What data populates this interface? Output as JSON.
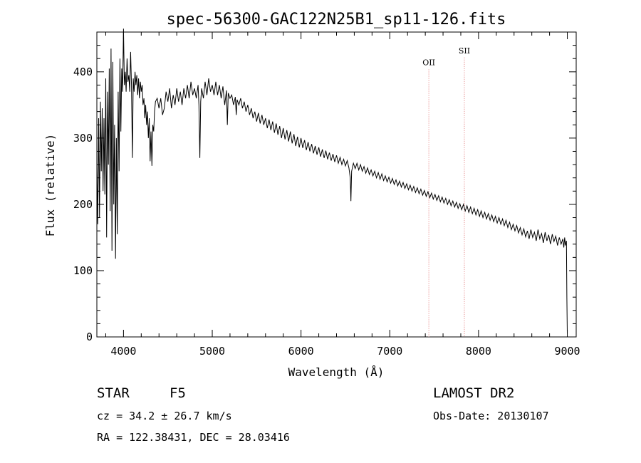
{
  "chart_data": {
    "type": "line",
    "title": "spec-56300-GAC122N25B1_sp11-126.fits",
    "xlabel": "Wavelength (Å)",
    "ylabel": "Flux (relative)",
    "xlim": [
      3700,
      9100
    ],
    "ylim": [
      0,
      460
    ],
    "x_ticks": [
      4000,
      5000,
      6000,
      7000,
      8000,
      9000
    ],
    "y_ticks": [
      0,
      100,
      200,
      300,
      400
    ],
    "grid": false,
    "series": [
      {
        "points": [
          [
            3700,
            260
          ],
          [
            3710,
            170
          ],
          [
            3720,
            330
          ],
          [
            3730,
            180
          ],
          [
            3740,
            355
          ],
          [
            3750,
            250
          ],
          [
            3760,
            345
          ],
          [
            3770,
            220
          ],
          [
            3780,
            330
          ],
          [
            3790,
            215
          ],
          [
            3800,
            390
          ],
          [
            3810,
            150
          ],
          [
            3820,
            370
          ],
          [
            3830,
            260
          ],
          [
            3840,
            405
          ],
          [
            3850,
            190
          ],
          [
            3860,
            435
          ],
          [
            3870,
            130
          ],
          [
            3880,
            415
          ],
          [
            3890,
            200
          ],
          [
            3900,
            320
          ],
          [
            3910,
            118
          ],
          [
            3920,
            300
          ],
          [
            3930,
            155
          ],
          [
            3940,
            370
          ],
          [
            3950,
            250
          ],
          [
            3960,
            420
          ],
          [
            3970,
            310
          ],
          [
            3980,
            405
          ],
          [
            3990,
            370
          ],
          [
            4000,
            465
          ],
          [
            4010,
            380
          ],
          [
            4020,
            400
          ],
          [
            4030,
            370
          ],
          [
            4040,
            420
          ],
          [
            4050,
            385
          ],
          [
            4060,
            395
          ],
          [
            4070,
            370
          ],
          [
            4080,
            430
          ],
          [
            4090,
            380
          ],
          [
            4100,
            270
          ],
          [
            4110,
            390
          ],
          [
            4120,
            370
          ],
          [
            4130,
            400
          ],
          [
            4140,
            380
          ],
          [
            4150,
            395
          ],
          [
            4160,
            365
          ],
          [
            4170,
            390
          ],
          [
            4180,
            360
          ],
          [
            4190,
            385
          ],
          [
            4200,
            370
          ],
          [
            4210,
            380
          ],
          [
            4220,
            350
          ],
          [
            4230,
            360
          ],
          [
            4240,
            330
          ],
          [
            4250,
            350
          ],
          [
            4260,
            320
          ],
          [
            4270,
            340
          ],
          [
            4280,
            300
          ],
          [
            4290,
            330
          ],
          [
            4300,
            265
          ],
          [
            4310,
            310
          ],
          [
            4320,
            258
          ],
          [
            4330,
            320
          ],
          [
            4340,
            310
          ],
          [
            4350,
            340
          ],
          [
            4360,
            355
          ],
          [
            4380,
            360
          ],
          [
            4400,
            345
          ],
          [
            4420,
            360
          ],
          [
            4440,
            335
          ],
          [
            4460,
            345
          ],
          [
            4480,
            370
          ],
          [
            4500,
            355
          ],
          [
            4520,
            375
          ],
          [
            4540,
            345
          ],
          [
            4560,
            365
          ],
          [
            4580,
            350
          ],
          [
            4600,
            375
          ],
          [
            4620,
            355
          ],
          [
            4640,
            370
          ],
          [
            4660,
            350
          ],
          [
            4680,
            375
          ],
          [
            4700,
            360
          ],
          [
            4720,
            380
          ],
          [
            4740,
            360
          ],
          [
            4760,
            385
          ],
          [
            4780,
            365
          ],
          [
            4800,
            375
          ],
          [
            4820,
            360
          ],
          [
            4840,
            380
          ],
          [
            4850,
            350
          ],
          [
            4860,
            270
          ],
          [
            4870,
            355
          ],
          [
            4880,
            375
          ],
          [
            4900,
            360
          ],
          [
            4920,
            385
          ],
          [
            4940,
            365
          ],
          [
            4960,
            390
          ],
          [
            4980,
            370
          ],
          [
            5000,
            380
          ],
          [
            5020,
            365
          ],
          [
            5040,
            385
          ],
          [
            5060,
            365
          ],
          [
            5080,
            380
          ],
          [
            5100,
            360
          ],
          [
            5120,
            378
          ],
          [
            5140,
            350
          ],
          [
            5160,
            372
          ],
          [
            5170,
            320
          ],
          [
            5180,
            368
          ],
          [
            5200,
            360
          ],
          [
            5220,
            365
          ],
          [
            5240,
            350
          ],
          [
            5260,
            362
          ],
          [
            5270,
            335
          ],
          [
            5280,
            358
          ],
          [
            5300,
            350
          ],
          [
            5320,
            360
          ],
          [
            5340,
            345
          ],
          [
            5360,
            355
          ],
          [
            5380,
            340
          ],
          [
            5400,
            350
          ],
          [
            5420,
            335
          ],
          [
            5440,
            345
          ],
          [
            5460,
            330
          ],
          [
            5480,
            340
          ],
          [
            5500,
            325
          ],
          [
            5520,
            338
          ],
          [
            5540,
            322
          ],
          [
            5560,
            335
          ],
          [
            5580,
            320
          ],
          [
            5600,
            330
          ],
          [
            5620,
            315
          ],
          [
            5640,
            328
          ],
          [
            5660,
            312
          ],
          [
            5680,
            325
          ],
          [
            5700,
            308
          ],
          [
            5720,
            322
          ],
          [
            5740,
            305
          ],
          [
            5760,
            318
          ],
          [
            5780,
            300
          ],
          [
            5800,
            315
          ],
          [
            5820,
            298
          ],
          [
            5840,
            312
          ],
          [
            5860,
            295
          ],
          [
            5880,
            310
          ],
          [
            5900,
            292
          ],
          [
            5920,
            306
          ],
          [
            5940,
            288
          ],
          [
            5960,
            302
          ],
          [
            5980,
            286
          ],
          [
            6000,
            300
          ],
          [
            6020,
            285
          ],
          [
            6040,
            297
          ],
          [
            6060,
            282
          ],
          [
            6080,
            294
          ],
          [
            6100,
            280
          ],
          [
            6120,
            291
          ],
          [
            6140,
            277
          ],
          [
            6160,
            288
          ],
          [
            6180,
            275
          ],
          [
            6200,
            286
          ],
          [
            6220,
            272
          ],
          [
            6240,
            283
          ],
          [
            6260,
            270
          ],
          [
            6280,
            281
          ],
          [
            6300,
            268
          ],
          [
            6320,
            278
          ],
          [
            6340,
            266
          ],
          [
            6360,
            276
          ],
          [
            6380,
            264
          ],
          [
            6400,
            274
          ],
          [
            6420,
            262
          ],
          [
            6440,
            271
          ],
          [
            6460,
            260
          ],
          [
            6480,
            268
          ],
          [
            6500,
            258
          ],
          [
            6520,
            266
          ],
          [
            6540,
            255
          ],
          [
            6555,
            240
          ],
          [
            6562,
            205
          ],
          [
            6570,
            250
          ],
          [
            6590,
            262
          ],
          [
            6610,
            254
          ],
          [
            6630,
            262
          ],
          [
            6650,
            252
          ],
          [
            6670,
            260
          ],
          [
            6690,
            250
          ],
          [
            6710,
            257
          ],
          [
            6730,
            247
          ],
          [
            6750,
            255
          ],
          [
            6770,
            245
          ],
          [
            6790,
            252
          ],
          [
            6810,
            243
          ],
          [
            6830,
            250
          ],
          [
            6850,
            240
          ],
          [
            6870,
            248
          ],
          [
            6890,
            238
          ],
          [
            6910,
            246
          ],
          [
            6930,
            236
          ],
          [
            6950,
            243
          ],
          [
            6970,
            234
          ],
          [
            6990,
            241
          ],
          [
            7010,
            232
          ],
          [
            7030,
            239
          ],
          [
            7050,
            230
          ],
          [
            7070,
            237
          ],
          [
            7090,
            228
          ],
          [
            7110,
            235
          ],
          [
            7130,
            226
          ],
          [
            7150,
            233
          ],
          [
            7170,
            224
          ],
          [
            7190,
            231
          ],
          [
            7210,
            222
          ],
          [
            7230,
            229
          ],
          [
            7250,
            220
          ],
          [
            7270,
            227
          ],
          [
            7290,
            218
          ],
          [
            7310,
            225
          ],
          [
            7330,
            216
          ],
          [
            7350,
            223
          ],
          [
            7370,
            214
          ],
          [
            7390,
            221
          ],
          [
            7410,
            212
          ],
          [
            7430,
            219
          ],
          [
            7450,
            210
          ],
          [
            7470,
            217
          ],
          [
            7490,
            208
          ],
          [
            7510,
            215
          ],
          [
            7530,
            206
          ],
          [
            7550,
            213
          ],
          [
            7570,
            204
          ],
          [
            7590,
            211
          ],
          [
            7610,
            202
          ],
          [
            7630,
            209
          ],
          [
            7650,
            200
          ],
          [
            7670,
            207
          ],
          [
            7690,
            198
          ],
          [
            7710,
            205
          ],
          [
            7730,
            196
          ],
          [
            7750,
            203
          ],
          [
            7770,
            194
          ],
          [
            7790,
            201
          ],
          [
            7810,
            192
          ],
          [
            7830,
            200
          ],
          [
            7850,
            190
          ],
          [
            7870,
            198
          ],
          [
            7890,
            188
          ],
          [
            7910,
            196
          ],
          [
            7930,
            186
          ],
          [
            7950,
            194
          ],
          [
            7970,
            184
          ],
          [
            7990,
            192
          ],
          [
            8010,
            182
          ],
          [
            8030,
            190
          ],
          [
            8050,
            180
          ],
          [
            8070,
            188
          ],
          [
            8090,
            178
          ],
          [
            8110,
            186
          ],
          [
            8130,
            176
          ],
          [
            8150,
            184
          ],
          [
            8170,
            174
          ],
          [
            8190,
            182
          ],
          [
            8210,
            172
          ],
          [
            8230,
            180
          ],
          [
            8250,
            170
          ],
          [
            8270,
            178
          ],
          [
            8290,
            168
          ],
          [
            8310,
            176
          ],
          [
            8330,
            165
          ],
          [
            8350,
            173
          ],
          [
            8370,
            162
          ],
          [
            8390,
            170
          ],
          [
            8410,
            160
          ],
          [
            8430,
            168
          ],
          [
            8450,
            157
          ],
          [
            8470,
            165
          ],
          [
            8490,
            154
          ],
          [
            8510,
            163
          ],
          [
            8530,
            151
          ],
          [
            8550,
            160
          ],
          [
            8570,
            148
          ],
          [
            8590,
            162
          ],
          [
            8610,
            150
          ],
          [
            8630,
            158
          ],
          [
            8650,
            145
          ],
          [
            8670,
            162
          ],
          [
            8690,
            148
          ],
          [
            8710,
            156
          ],
          [
            8730,
            142
          ],
          [
            8750,
            158
          ],
          [
            8770,
            145
          ],
          [
            8790,
            154
          ],
          [
            8810,
            140
          ],
          [
            8830,
            155
          ],
          [
            8850,
            144
          ],
          [
            8870,
            152
          ],
          [
            8890,
            138
          ],
          [
            8910,
            150
          ],
          [
            8930,
            140
          ],
          [
            8950,
            148
          ],
          [
            8960,
            135
          ],
          [
            8970,
            150
          ],
          [
            8980,
            138
          ],
          [
            8990,
            145
          ],
          [
            8995,
            60
          ],
          [
            9000,
            5
          ]
        ]
      }
    ],
    "line_markers": [
      {
        "label": "OII",
        "x": 7440,
        "label_y": 410
      },
      {
        "label": "SII",
        "x": 7840,
        "label_y": 428
      }
    ]
  },
  "info": {
    "class_label": "STAR",
    "subclass": "F5",
    "survey": "LAMOST DR2",
    "cz": "cz = 34.2 ± 26.7 km/s",
    "obs_date": "Obs-Date: 20130107",
    "coords": "RA = 122.38431, DEC =  28.03416"
  },
  "colors": {
    "spectrum": "#000000",
    "marker_line": "#e07070"
  }
}
